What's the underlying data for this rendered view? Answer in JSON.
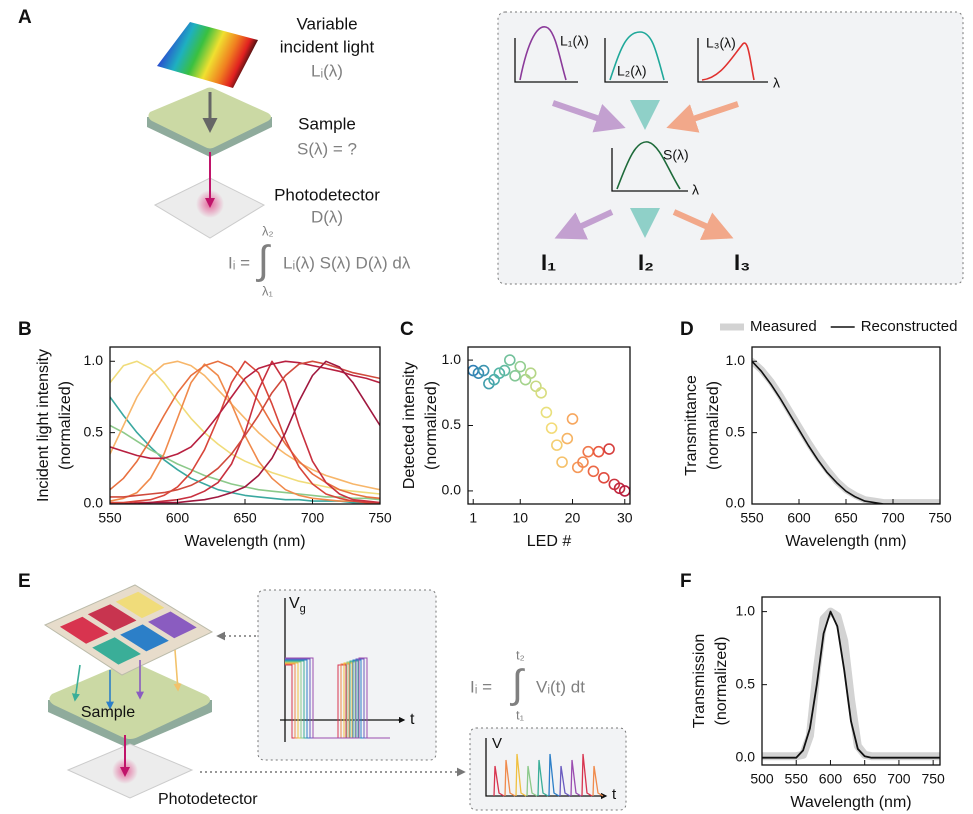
{
  "diagram_a": {
    "label": "A",
    "incident": [
      "Variable",
      "incident light"
    ],
    "incident_symbol": "Lᵢ(λ)",
    "sample": "Sample",
    "sample_symbol": "S(λ) = ?",
    "detector": "Photodetector",
    "detector_symbol": "D(λ)",
    "equation": {
      "lhs": "Iᵢ =",
      "integral": "∫",
      "upper": "λ₂",
      "lower": "λ₁",
      "integrand": "Lᵢ(λ) S(λ) D(λ) dλ"
    },
    "box": {
      "sources": [
        "L₁(λ)",
        "L₂(λ)",
        "L₃(λ)"
      ],
      "axis_symbol": "λ",
      "sample": "S(λ)",
      "outputs": [
        "I₁",
        "I₂",
        "I₃"
      ]
    }
  },
  "diagram_e": {
    "label": "E",
    "sample": "Sample",
    "detector": "Photodetector",
    "gate_symbol": [
      "V",
      "g"
    ],
    "time_symbol": "t",
    "signal_symbol": "V",
    "equation": {
      "lhs": "Iᵢ =",
      "integral": "∫",
      "upper": "t₂",
      "lower": "t₁",
      "integrand": "Vᵢ(t) dt"
    }
  },
  "chart_data": [
    {
      "type": "line",
      "panel_label": "B",
      "xlabel": "Wavelength (nm)",
      "ylabel": [
        "Incident light intensity",
        "(normalized)"
      ],
      "x": [
        550,
        560,
        570,
        580,
        590,
        600,
        610,
        620,
        630,
        640,
        650,
        660,
        670,
        680,
        690,
        700,
        710,
        720,
        730,
        740,
        750
      ],
      "xlim": [
        550,
        750
      ],
      "xticks": [
        550,
        600,
        650,
        700,
        750
      ],
      "ylim": [
        0,
        1.1
      ],
      "yticks": [
        {
          "value": 0,
          "label": "0.0"
        },
        {
          "value": 0.5,
          "label": "0.5"
        },
        {
          "value": 1,
          "label": "1.0"
        }
      ],
      "series": [
        {
          "color": "#3aa8a0",
          "values": [
            0.75,
            0.62,
            0.5,
            0.4,
            0.31,
            0.24,
            0.18,
            0.14,
            0.1,
            0.08,
            0.06,
            0.05,
            0.04,
            0.03,
            0.03,
            0.02,
            0.02,
            0.02,
            0.01,
            0.01,
            0.01
          ]
        },
        {
          "color": "#8cc98a",
          "values": [
            0.55,
            0.5,
            0.44,
            0.38,
            0.33,
            0.28,
            0.24,
            0.2,
            0.17,
            0.14,
            0.12,
            0.1,
            0.09,
            0.08,
            0.07,
            0.06,
            0.05,
            0.05,
            0.04,
            0.04,
            0.03
          ]
        },
        {
          "color": "#f0dc7a",
          "values": [
            0.85,
            0.97,
            1.0,
            0.95,
            0.85,
            0.72,
            0.6,
            0.5,
            0.42,
            0.35,
            0.3,
            0.26,
            0.22,
            0.19,
            0.16,
            0.14,
            0.12,
            0.1,
            0.09,
            0.08,
            0.07
          ]
        },
        {
          "color": "#f7b66a",
          "values": [
            0.35,
            0.55,
            0.75,
            0.9,
            0.98,
            1.0,
            0.97,
            0.9,
            0.8,
            0.7,
            0.6,
            0.5,
            0.42,
            0.35,
            0.29,
            0.24,
            0.2,
            0.17,
            0.14,
            0.12,
            0.1
          ]
        },
        {
          "color": "#f08a4b",
          "values": [
            0.02,
            0.04,
            0.08,
            0.18,
            0.35,
            0.6,
            0.85,
            0.98,
            0.9,
            0.7,
            0.48,
            0.3,
            0.18,
            0.1,
            0.06,
            0.04,
            0.03,
            0.02,
            0.02,
            0.01,
            0.01
          ]
        },
        {
          "color": "#e8703f",
          "values": [
            0.1,
            0.18,
            0.3,
            0.45,
            0.62,
            0.78,
            0.9,
            0.97,
            1.0,
            0.96,
            0.86,
            0.72,
            0.56,
            0.42,
            0.3,
            0.21,
            0.15,
            0.1,
            0.07,
            0.05,
            0.04
          ]
        },
        {
          "color": "#d8453a",
          "values": [
            0.01,
            0.01,
            0.02,
            0.03,
            0.06,
            0.12,
            0.22,
            0.38,
            0.6,
            0.85,
            1.0,
            0.92,
            0.7,
            0.45,
            0.26,
            0.14,
            0.07,
            0.04,
            0.02,
            0.01,
            0.01
          ]
        },
        {
          "color": "#c8303f",
          "values": [
            0,
            0,
            0.01,
            0.01,
            0.02,
            0.03,
            0.05,
            0.09,
            0.15,
            0.28,
            0.5,
            0.8,
            1.0,
            0.85,
            0.55,
            0.3,
            0.15,
            0.07,
            0.03,
            0.02,
            0.01
          ]
        },
        {
          "color": "#b82040",
          "values": [
            0.4,
            0.37,
            0.34,
            0.32,
            0.32,
            0.35,
            0.4,
            0.5,
            0.62,
            0.75,
            0.88,
            0.95,
            0.98,
            1.0,
            0.99,
            0.97,
            0.95,
            0.93,
            0.9,
            0.88,
            0.85
          ]
        },
        {
          "color": "#d04a3c",
          "values": [
            0.05,
            0.05,
            0.06,
            0.07,
            0.08,
            0.1,
            0.13,
            0.18,
            0.25,
            0.35,
            0.48,
            0.62,
            0.78,
            0.9,
            0.98,
            1.0,
            0.98,
            0.95,
            0.92,
            0.9,
            0.88
          ]
        },
        {
          "color": "#a0183f",
          "values": [
            0,
            0,
            0,
            0.01,
            0.01,
            0.01,
            0.02,
            0.03,
            0.05,
            0.08,
            0.12,
            0.2,
            0.32,
            0.5,
            0.72,
            0.9,
            1.0,
            0.96,
            0.85,
            0.7,
            0.55
          ]
        }
      ]
    },
    {
      "type": "scatter",
      "panel_label": "C",
      "xlabel": "LED #",
      "ylabel": [
        "Detected intensity",
        "(normalized)"
      ],
      "x": [
        1,
        2,
        3,
        4,
        5,
        6,
        7,
        8,
        9,
        10,
        11,
        12,
        13,
        14,
        15,
        16,
        17,
        18,
        19,
        20,
        21,
        22,
        23,
        24,
        25,
        26,
        27,
        28,
        29,
        30
      ],
      "values": [
        0.92,
        0.9,
        0.92,
        0.82,
        0.85,
        0.9,
        0.92,
        1.0,
        0.88,
        0.95,
        0.85,
        0.9,
        0.8,
        0.75,
        0.6,
        0.48,
        0.35,
        0.22,
        0.4,
        0.55,
        0.18,
        0.22,
        0.3,
        0.15,
        0.3,
        0.1,
        0.32,
        0.05,
        0.02,
        0
      ],
      "colormap": [
        "#2f7fb5",
        "#4fb3a8",
        "#9ed28c",
        "#f2e27a",
        "#f7a35c",
        "#e8553f",
        "#b81d3f"
      ],
      "xlim": [
        0,
        31
      ],
      "xticks": [
        1,
        10,
        20,
        30
      ],
      "ylim": [
        -0.1,
        1.1
      ],
      "yticks": [
        {
          "value": 0,
          "label": "0.0"
        },
        {
          "value": 0.5,
          "label": "0.5"
        },
        {
          "value": 1,
          "label": "1.0"
        }
      ]
    },
    {
      "type": "line",
      "panel_label": "D",
      "xlabel": "Wavelength (nm)",
      "ylabel": [
        "Transmittance",
        "(normalized)"
      ],
      "legend": "top",
      "x": [
        550,
        560,
        570,
        580,
        590,
        600,
        610,
        620,
        630,
        640,
        650,
        660,
        670,
        680,
        690,
        700,
        710,
        720,
        730,
        740,
        750
      ],
      "xlim": [
        550,
        750
      ],
      "xticks": [
        550,
        600,
        650,
        700,
        750
      ],
      "ylim": [
        0,
        1.1
      ],
      "yticks": [
        {
          "value": 0,
          "label": "0.0"
        },
        {
          "value": 0.5,
          "label": "0.5"
        },
        {
          "value": 1,
          "label": "1.0"
        }
      ],
      "series": [
        {
          "name": "Measured",
          "color": "#d3d3d3",
          "values": [
            1.0,
            0.94,
            0.86,
            0.76,
            0.65,
            0.54,
            0.43,
            0.33,
            0.24,
            0.16,
            0.1,
            0.06,
            0.03,
            0.02,
            0.01,
            0.01,
            0.01,
            0.01,
            0.01,
            0.01,
            0.01
          ]
        },
        {
          "name": "Reconstructed",
          "color": "#111111",
          "values": [
            1.0,
            0.93,
            0.84,
            0.74,
            0.63,
            0.52,
            0.41,
            0.31,
            0.22,
            0.15,
            0.09,
            0.05,
            0.02,
            0.01,
            0,
            0,
            0,
            0,
            0,
            0,
            0
          ]
        }
      ]
    },
    {
      "type": "line",
      "panel_label": "F",
      "xlabel": "Wavelength (nm)",
      "ylabel": [
        "Transmission",
        "(normalized)"
      ],
      "x": [
        500,
        510,
        520,
        530,
        540,
        550,
        560,
        570,
        580,
        590,
        600,
        610,
        620,
        630,
        640,
        650,
        660,
        670,
        680,
        690,
        700,
        710,
        720,
        730,
        740,
        750,
        760
      ],
      "xlim": [
        500,
        760
      ],
      "xticks": [
        500,
        550,
        600,
        650,
        700,
        750
      ],
      "ylim": [
        -0.05,
        1.1
      ],
      "yticks": [
        {
          "value": 0,
          "label": "0.0"
        },
        {
          "value": 0.5,
          "label": "0.5"
        },
        {
          "value": 1,
          "label": "1.0"
        }
      ],
      "series": [
        {
          "color": "#d3d3d3",
          "values": [
            0.01,
            0.01,
            0.01,
            0.01,
            0.01,
            0.01,
            0.02,
            0.15,
            0.6,
            0.95,
            1.0,
            0.97,
            0.8,
            0.4,
            0.08,
            0.02,
            0.01,
            0.01,
            0.01,
            0.01,
            0.01,
            0.01,
            0.01,
            0.01,
            0.01,
            0.01,
            0.01
          ]
        },
        {
          "color": "#111111",
          "values": [
            0,
            0,
            0,
            0,
            0,
            0,
            0.05,
            0.2,
            0.5,
            0.85,
            1.0,
            0.9,
            0.6,
            0.25,
            0.06,
            0.01,
            0,
            0,
            0,
            0,
            0,
            0,
            0,
            0,
            0,
            0,
            0
          ]
        }
      ]
    }
  ]
}
